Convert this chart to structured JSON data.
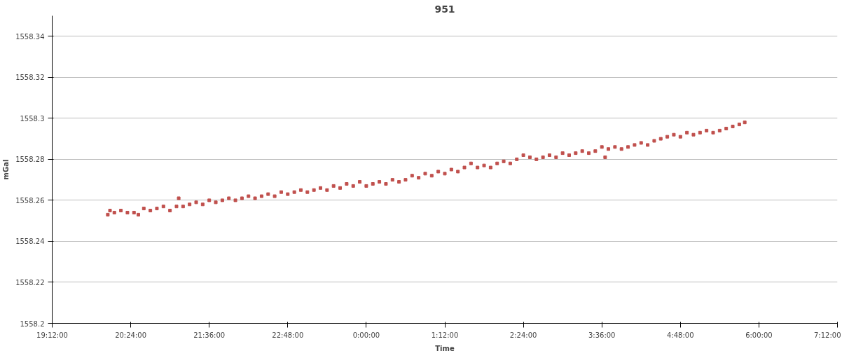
{
  "chart_data": {
    "type": "scatter",
    "title": "951",
    "xlabel": "Time",
    "ylabel": "mGal",
    "xlim": [
      "2000-01-01T19:12",
      "2000-01-02T07:12"
    ],
    "xticks": [
      {
        "value": "2000-01-01T19:12",
        "label": "19:12:00"
      },
      {
        "value": "2000-01-01T20:24",
        "label": "20:24:00"
      },
      {
        "value": "2000-01-01T21:36",
        "label": "21:36:00"
      },
      {
        "value": "2000-01-01T22:48",
        "label": "22:48:00"
      },
      {
        "value": "2000-01-02T00:00",
        "label": "0:00:00"
      },
      {
        "value": "2000-01-02T01:12",
        "label": "1:12:00"
      },
      {
        "value": "2000-01-02T02:24",
        "label": "2:24:00"
      },
      {
        "value": "2000-01-02T03:36",
        "label": "3:36:00"
      },
      {
        "value": "2000-01-02T04:48",
        "label": "4:48:00"
      },
      {
        "value": "2000-01-02T06:00",
        "label": "6:00:00"
      },
      {
        "value": "2000-01-02T07:12",
        "label": "7:12:00"
      }
    ],
    "ylim": [
      1558.2,
      1558.35
    ],
    "yticks": [
      1558.2,
      1558.22,
      1558.24,
      1558.26,
      1558.28,
      1558.3,
      1558.32,
      1558.34
    ],
    "grid": "y",
    "marker": "square",
    "series": [
      {
        "color": "#c0504d",
        "x": [
          "2000-01-01T20:03",
          "2000-01-01T20:05",
          "2000-01-01T20:09",
          "2000-01-01T20:15",
          "2000-01-01T20:21",
          "2000-01-01T20:27",
          "2000-01-01T20:31",
          "2000-01-01T20:36",
          "2000-01-01T20:42",
          "2000-01-01T20:48",
          "2000-01-01T20:54",
          "2000-01-01T21:00",
          "2000-01-01T21:06",
          "2000-01-01T21:08",
          "2000-01-01T21:12",
          "2000-01-01T21:18",
          "2000-01-01T21:24",
          "2000-01-01T21:30",
          "2000-01-01T21:36",
          "2000-01-01T21:42",
          "2000-01-01T21:48",
          "2000-01-01T21:54",
          "2000-01-01T22:00",
          "2000-01-01T22:06",
          "2000-01-01T22:12",
          "2000-01-01T22:18",
          "2000-01-01T22:24",
          "2000-01-01T22:30",
          "2000-01-01T22:36",
          "2000-01-01T22:42",
          "2000-01-01T22:48",
          "2000-01-01T22:54",
          "2000-01-01T23:00",
          "2000-01-01T23:06",
          "2000-01-01T23:12",
          "2000-01-01T23:18",
          "2000-01-01T23:24",
          "2000-01-01T23:30",
          "2000-01-01T23:36",
          "2000-01-01T23:42",
          "2000-01-01T23:48",
          "2000-01-01T23:54",
          "2000-01-02T00:00",
          "2000-01-02T00:06",
          "2000-01-02T00:12",
          "2000-01-02T00:18",
          "2000-01-02T00:24",
          "2000-01-02T00:30",
          "2000-01-02T00:36",
          "2000-01-02T00:42",
          "2000-01-02T00:48",
          "2000-01-02T00:54",
          "2000-01-02T01:00",
          "2000-01-02T01:06",
          "2000-01-02T01:12",
          "2000-01-02T01:18",
          "2000-01-02T01:24",
          "2000-01-02T01:30",
          "2000-01-02T01:36",
          "2000-01-02T01:42",
          "2000-01-02T01:48",
          "2000-01-02T01:54",
          "2000-01-02T02:00",
          "2000-01-02T02:06",
          "2000-01-02T02:12",
          "2000-01-02T02:18",
          "2000-01-02T02:24",
          "2000-01-02T02:30",
          "2000-01-02T02:36",
          "2000-01-02T02:42",
          "2000-01-02T02:48",
          "2000-01-02T02:54",
          "2000-01-02T03:00",
          "2000-01-02T03:06",
          "2000-01-02T03:12",
          "2000-01-02T03:18",
          "2000-01-02T03:24",
          "2000-01-02T03:30",
          "2000-01-02T03:36",
          "2000-01-02T03:39",
          "2000-01-02T03:42",
          "2000-01-02T03:48",
          "2000-01-02T03:54",
          "2000-01-02T04:00",
          "2000-01-02T04:06",
          "2000-01-02T04:12",
          "2000-01-02T04:18",
          "2000-01-02T04:24",
          "2000-01-02T04:30",
          "2000-01-02T04:36",
          "2000-01-02T04:42",
          "2000-01-02T04:48",
          "2000-01-02T04:54",
          "2000-01-02T05:00",
          "2000-01-02T05:06",
          "2000-01-02T05:12",
          "2000-01-02T05:18",
          "2000-01-02T05:24",
          "2000-01-02T05:30",
          "2000-01-02T05:36",
          "2000-01-02T05:42",
          "2000-01-02T05:47"
        ],
        "values": [
          1558.253,
          1558.255,
          1558.254,
          1558.255,
          1558.254,
          1558.254,
          1558.253,
          1558.256,
          1558.255,
          1558.256,
          1558.257,
          1558.255,
          1558.257,
          1558.261,
          1558.257,
          1558.258,
          1558.259,
          1558.258,
          1558.26,
          1558.259,
          1558.26,
          1558.261,
          1558.26,
          1558.261,
          1558.262,
          1558.261,
          1558.262,
          1558.263,
          1558.262,
          1558.264,
          1558.263,
          1558.264,
          1558.265,
          1558.264,
          1558.265,
          1558.266,
          1558.265,
          1558.267,
          1558.266,
          1558.268,
          1558.267,
          1558.269,
          1558.267,
          1558.268,
          1558.269,
          1558.268,
          1558.27,
          1558.269,
          1558.27,
          1558.272,
          1558.271,
          1558.273,
          1558.272,
          1558.274,
          1558.273,
          1558.275,
          1558.274,
          1558.276,
          1558.278,
          1558.276,
          1558.277,
          1558.276,
          1558.278,
          1558.279,
          1558.278,
          1558.28,
          1558.282,
          1558.281,
          1558.28,
          1558.281,
          1558.282,
          1558.281,
          1558.283,
          1558.282,
          1558.283,
          1558.284,
          1558.283,
          1558.284,
          1558.286,
          1558.281,
          1558.285,
          1558.286,
          1558.285,
          1558.286,
          1558.287,
          1558.288,
          1558.287,
          1558.289,
          1558.29,
          1558.291,
          1558.292,
          1558.291,
          1558.293,
          1558.292,
          1558.293,
          1558.294,
          1558.293,
          1558.294,
          1558.295,
          1558.296,
          1558.297,
          1558.298
        ]
      }
    ]
  }
}
